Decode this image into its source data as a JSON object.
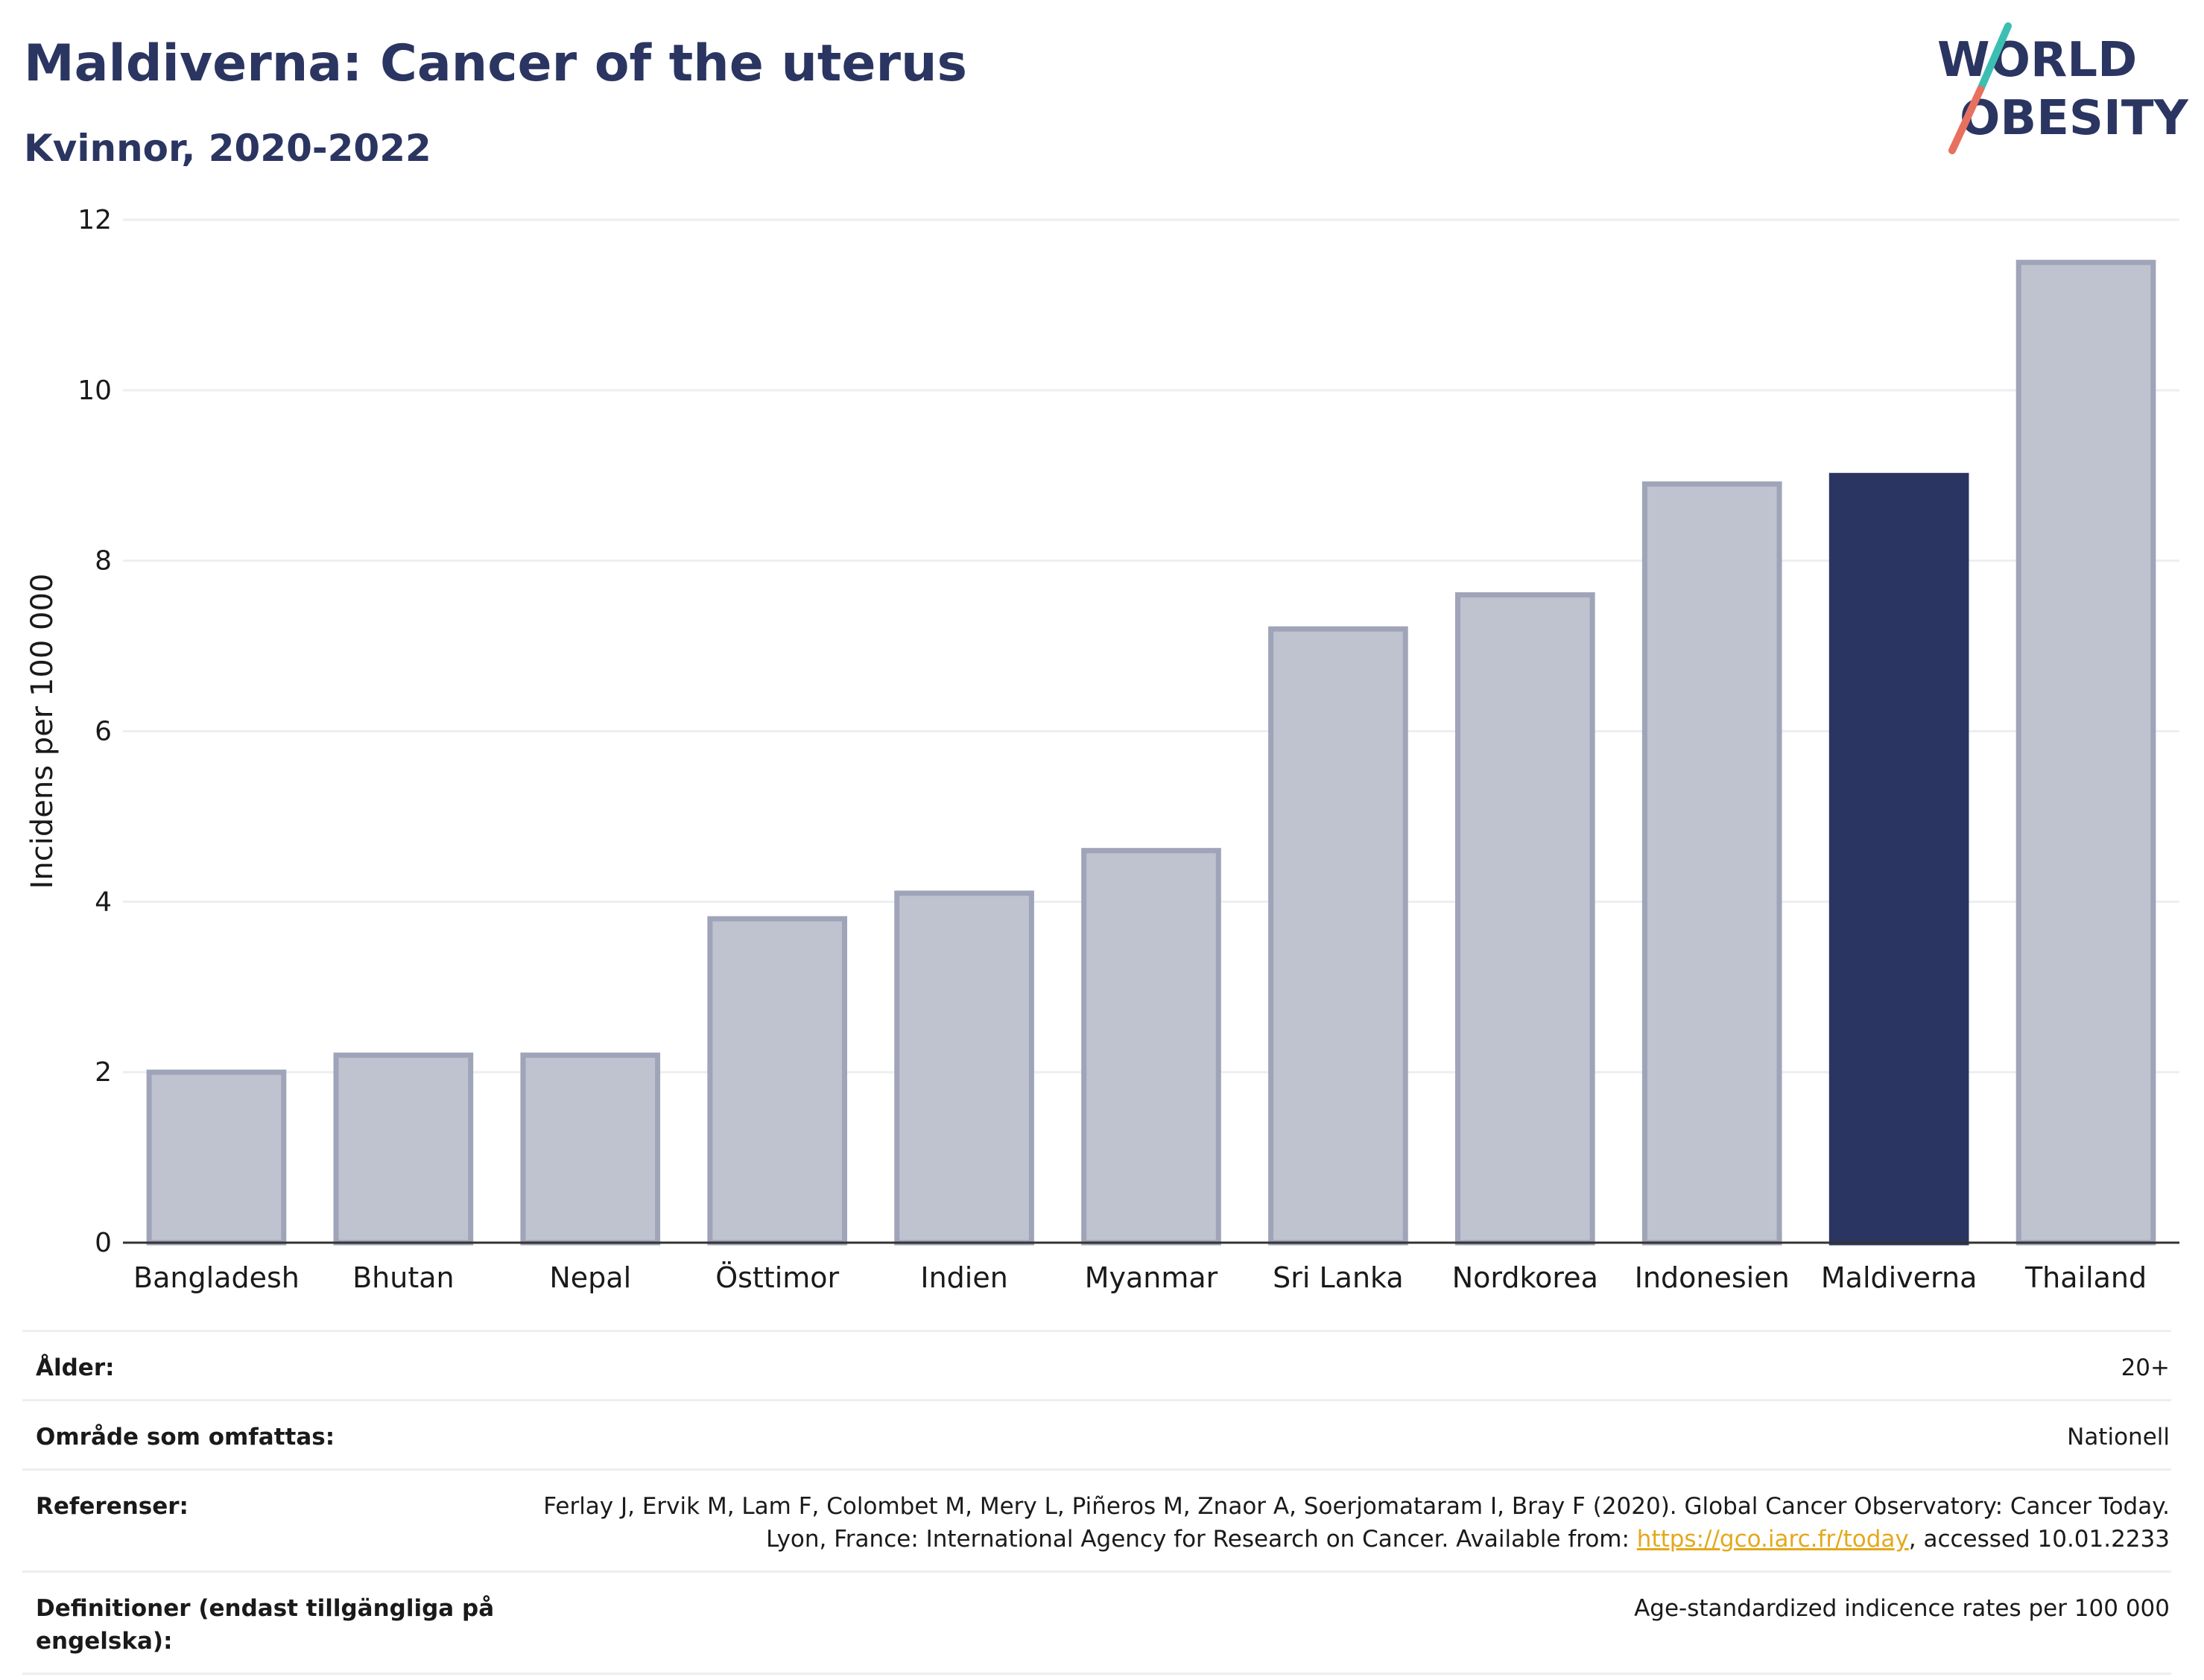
{
  "header": {
    "title": "Maldiverna: Cancer of the uterus",
    "subtitle": "Kvinnor, 2020-2022"
  },
  "logo": {
    "line1": "WORLD",
    "line2": "OBESITY",
    "colors": {
      "text": "#2b3561",
      "slash_teal": "#3bbfb3",
      "slash_coral": "#e8705f"
    }
  },
  "colors": {
    "bar_default": "#bfc2cf",
    "bar_default_border": "#9fa4b8",
    "bar_highlight": "#2b3561",
    "grid": "#eceef2",
    "axis": "#333333"
  },
  "chart_data": {
    "type": "bar",
    "categories": [
      "Bangladesh",
      "Bhutan",
      "Nepal",
      "Östtimor",
      "Indien",
      "Myanmar",
      "Sri Lanka",
      "Nordkorea",
      "Indonesien",
      "Maldiverna",
      "Thailand"
    ],
    "values": [
      2.0,
      2.2,
      2.2,
      3.8,
      4.1,
      4.6,
      7.2,
      7.6,
      8.9,
      9.0,
      11.5
    ],
    "highlight": "Maldiverna",
    "ylabel": "Incidens per 100 000",
    "xlabel": "",
    "ylim": [
      0,
      12
    ],
    "yticks": [
      0,
      2,
      4,
      6,
      8,
      10,
      12
    ],
    "grid": true
  },
  "meta": {
    "rows": [
      {
        "label": "Ålder:",
        "value": "20+"
      },
      {
        "label": "Område som omfattas:",
        "value": "Nationell"
      },
      {
        "label": "Referenser:",
        "value_pre": "Ferlay J, Ervik M, Lam F, Colombet M, Mery L, Piñeros M, Znaor A, Soerjomataram I, Bray F (2020). Global Cancer Observatory: Cancer Today. Lyon, France: International Agency for Research on Cancer. Available from: ",
        "link": "https://gco.iarc.fr/today",
        "value_post": ", accessed 10.01.2233"
      },
      {
        "label": "Definitioner (endast tillgängliga på engelska):",
        "value": "Age-standardized indicence rates per 100 000"
      }
    ]
  }
}
